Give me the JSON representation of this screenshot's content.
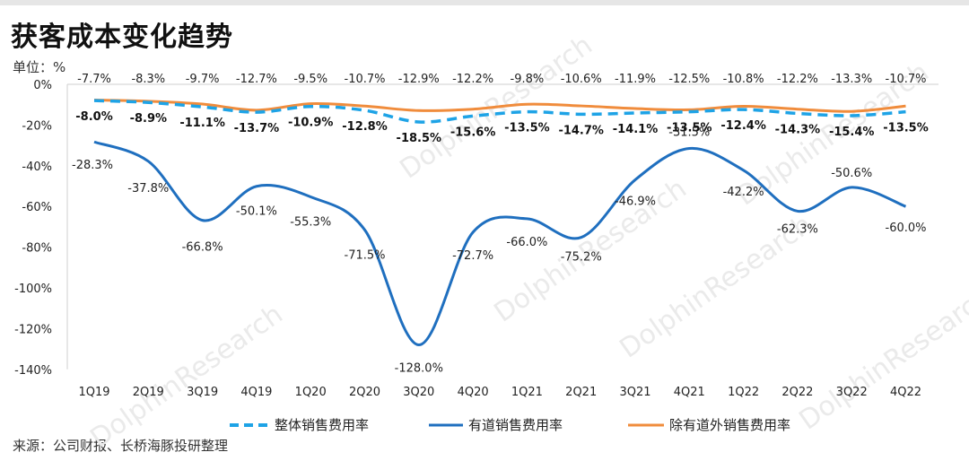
{
  "title": "获客成本变化趋势",
  "unit_label": "单位：%",
  "source": "来源：公司财报、长桥海豚投研整理",
  "watermark": "DolphinResearch",
  "colors": {
    "overall": "#1ea3e6",
    "youdao": "#1f6fbf",
    "excl": "#f08c3c"
  },
  "chart_data": {
    "type": "line",
    "categories": [
      "1Q19",
      "2Q19",
      "3Q19",
      "4Q19",
      "1Q20",
      "2Q20",
      "3Q20",
      "4Q20",
      "1Q21",
      "2Q21",
      "3Q21",
      "4Q21",
      "1Q22",
      "2Q22",
      "3Q22",
      "4Q22"
    ],
    "ylim": [
      -140,
      0
    ],
    "yticks": [
      0,
      -20,
      -40,
      -60,
      -80,
      -100,
      -120,
      -140
    ],
    "ytick_labels": [
      "0%",
      "-20%",
      "-40%",
      "-60%",
      "-80%",
      "-100%",
      "-120%",
      "-140%"
    ],
    "legend_position": "bottom",
    "series": [
      {
        "name": "整体销售费用率",
        "style": "dashed",
        "values": [
          -8.0,
          -8.9,
          -11.1,
          -13.7,
          -10.9,
          -12.8,
          -18.5,
          -15.6,
          -13.5,
          -14.7,
          -14.1,
          -13.5,
          -12.4,
          -14.3,
          -15.4,
          -13.5
        ],
        "labels": [
          "-8.0%",
          "-8.9%",
          "-11.1%",
          "-13.7%",
          "-10.9%",
          "-12.8%",
          "-18.5%",
          "-15.6%",
          "-13.5%",
          "-14.7%",
          "-14.1%",
          "-13.5%",
          "-12.4%",
          "-14.3%",
          "-15.4%",
          "-13.5%"
        ]
      },
      {
        "name": "有道销售费用率",
        "style": "solid",
        "values": [
          -28.3,
          -37.8,
          -66.8,
          -50.1,
          -55.3,
          -71.5,
          -128.0,
          -72.7,
          -66.0,
          -75.2,
          -46.9,
          -31.5,
          -42.2,
          -62.3,
          -50.6,
          -60.0
        ],
        "labels": [
          "-28.3%",
          "-37.8%",
          "-66.8%",
          "-50.1%",
          "-55.3%",
          "-71.5%",
          "-128.0%",
          "-72.7%",
          "-66.0%",
          "-75.2%",
          "-46.9%",
          "-31.5%",
          "-42.2%",
          "-62.3%",
          "-50.6%",
          "-60.0%"
        ]
      },
      {
        "name": "除有道外销售费用率",
        "style": "solid",
        "values": [
          -7.7,
          -8.3,
          -9.7,
          -12.7,
          -9.5,
          -10.7,
          -12.9,
          -12.2,
          -9.8,
          -10.6,
          -11.9,
          -12.5,
          -10.8,
          -12.2,
          -13.3,
          -10.7
        ],
        "labels": [
          "-7.7%",
          "-8.3%",
          "-9.7%",
          "-12.7%",
          "-9.5%",
          "-10.7%",
          "-12.9%",
          "-12.2%",
          "-9.8%",
          "-10.6%",
          "-11.9%",
          "-12.5%",
          "-10.8%",
          "-12.2%",
          "-13.3%",
          "-10.7%"
        ]
      }
    ]
  }
}
